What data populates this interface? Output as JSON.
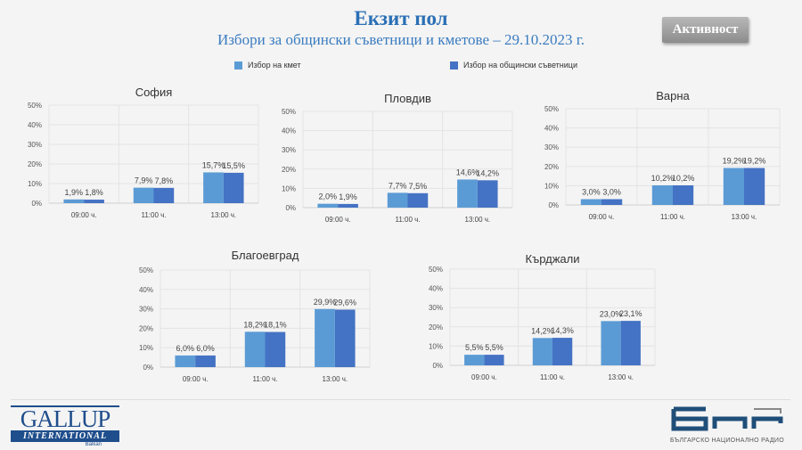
{
  "header": {
    "title": "Екзит пол",
    "subtitle": "Избори за общински съветници и кметове – 29.10.2023 г.",
    "activity_button": "Активност"
  },
  "legend": [
    {
      "label": "Избор на кмет",
      "color": "#5b9bd5"
    },
    {
      "label": "Избор на общински съветници",
      "color": "#4472c4"
    }
  ],
  "chart_data": [
    {
      "type": "bar",
      "title": "София",
      "categories": [
        "09:00 ч.",
        "11:00 ч.",
        "13:00 ч."
      ],
      "ylim": [
        0,
        50
      ],
      "yticks": [
        "0%",
        "10%",
        "20%",
        "30%",
        "40%",
        "50%"
      ],
      "grid": true,
      "series": [
        {
          "name": "Избор на кмет",
          "values": [
            1.9,
            7.9,
            15.7
          ],
          "labels": [
            "1,9%",
            "7,9%",
            "15,7%"
          ]
        },
        {
          "name": "Избор на общински съветници",
          "values": [
            1.8,
            7.8,
            15.5
          ],
          "labels": [
            "1,8%",
            "7,8%",
            "15,5%"
          ]
        }
      ]
    },
    {
      "type": "bar",
      "title": "Пловдив",
      "categories": [
        "09:00 ч.",
        "11:00 ч.",
        "13:00 ч."
      ],
      "ylim": [
        0,
        50
      ],
      "yticks": [
        "0%",
        "10%",
        "20%",
        "30%",
        "40%",
        "50%"
      ],
      "grid": true,
      "series": [
        {
          "name": "Избор на кмет",
          "values": [
            2.0,
            7.7,
            14.6
          ],
          "labels": [
            "2,0%",
            "7,7%",
            "14,6%"
          ]
        },
        {
          "name": "Избор на общински съветници",
          "values": [
            1.9,
            7.5,
            14.2
          ],
          "labels": [
            "1,9%",
            "7,5%",
            "14,2%"
          ]
        }
      ]
    },
    {
      "type": "bar",
      "title": "Варна",
      "categories": [
        "09:00 ч.",
        "11:00 ч.",
        "13:00 ч."
      ],
      "ylim": [
        0,
        50
      ],
      "yticks": [
        "0%",
        "10%",
        "20%",
        "30%",
        "40%",
        "50%"
      ],
      "grid": true,
      "series": [
        {
          "name": "Избор на кмет",
          "values": [
            3.0,
            10.2,
            19.2
          ],
          "labels": [
            "3,0%",
            "10,2%",
            "19,2%"
          ]
        },
        {
          "name": "Избор на общински съветници",
          "values": [
            3.0,
            10.2,
            19.2
          ],
          "labels": [
            "3,0%",
            "10,2%",
            "19,2%"
          ]
        }
      ]
    },
    {
      "type": "bar",
      "title": "Благоевград",
      "categories": [
        "09:00 ч.",
        "11:00 ч.",
        "13:00 ч."
      ],
      "ylim": [
        0,
        50
      ],
      "yticks": [
        "0%",
        "10%",
        "20%",
        "30%",
        "40%",
        "50%"
      ],
      "grid": true,
      "series": [
        {
          "name": "Избор на кмет",
          "values": [
            6.0,
            18.2,
            29.9
          ],
          "labels": [
            "6,0%",
            "18,2%",
            "29,9%"
          ]
        },
        {
          "name": "Избор на общински съветници",
          "values": [
            6.0,
            18.1,
            29.6
          ],
          "labels": [
            "6,0%",
            "18,1%",
            "29,6%"
          ]
        }
      ]
    },
    {
      "type": "bar",
      "title": "Кърджали",
      "categories": [
        "09:00 ч.",
        "11:00 ч.",
        "13:00 ч."
      ],
      "ylim": [
        0,
        50
      ],
      "yticks": [
        "0%",
        "10%",
        "20%",
        "30%",
        "40%",
        "50%"
      ],
      "grid": true,
      "series": [
        {
          "name": "Избор на кмет",
          "values": [
            5.5,
            14.2,
            23.0
          ],
          "labels": [
            "5,5%",
            "14,2%",
            "23,0%"
          ]
        },
        {
          "name": "Избор на общински съветници",
          "values": [
            5.5,
            14.3,
            23.1
          ],
          "labels": [
            "5,5%",
            "14,3%",
            "23,1%"
          ]
        }
      ]
    }
  ],
  "logos": {
    "gallup": "GALLUP INTERNATIONAL Balkan",
    "bnr": "БНР",
    "bnr_caption": "БЪЛГАРСКО НАЦИОНАЛНО РАДИО"
  }
}
